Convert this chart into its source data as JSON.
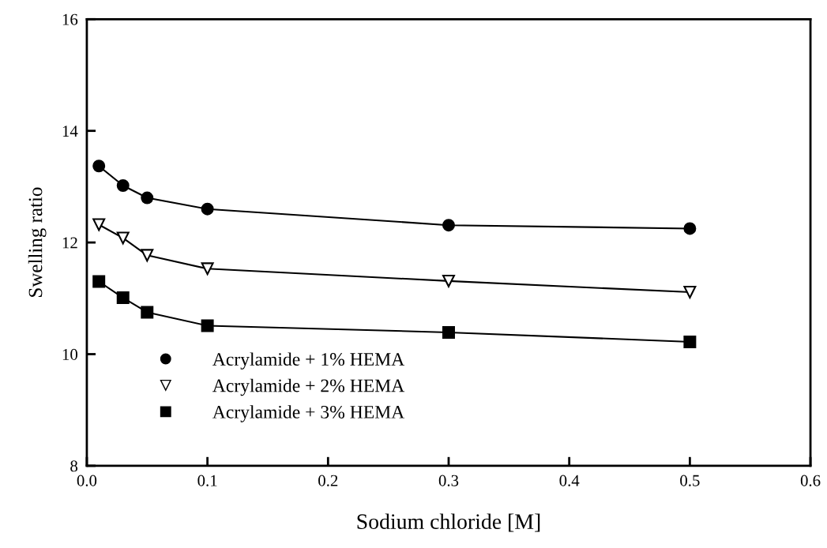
{
  "chart_data": {
    "type": "line",
    "xlabel": "Sodium chloride [M]",
    "ylabel": "Swelling ratio",
    "x": [
      0.01,
      0.03,
      0.05,
      0.1,
      0.3,
      0.5
    ],
    "series": [
      {
        "name": "Acrylamide + 1% HEMA",
        "color": "#000000",
        "marker": "circle",
        "values": [
          13.37,
          13.02,
          12.8,
          12.6,
          12.31,
          12.25
        ]
      },
      {
        "name": "Acrylamide + 2% HEMA",
        "color": "#000000",
        "marker": "triangle",
        "values": [
          12.32,
          12.08,
          11.77,
          11.53,
          11.31,
          11.11
        ]
      },
      {
        "name": "Acrylamide + 3% HEMA",
        "color": "#000000",
        "marker": "square",
        "values": [
          11.3,
          11.01,
          10.75,
          10.51,
          10.39,
          10.22
        ]
      }
    ],
    "xlim": [
      0.0,
      0.6
    ],
    "xticks": [
      {
        "value": 0,
        "label": "0.0"
      },
      0.1,
      0.2,
      0.3,
      0.4,
      0.5,
      0.6
    ],
    "ylim": [
      8,
      16
    ],
    "yticks": [
      8,
      10,
      12,
      14,
      16
    ],
    "grid": false,
    "legend": "bottom left",
    "line_style": "solid"
  }
}
